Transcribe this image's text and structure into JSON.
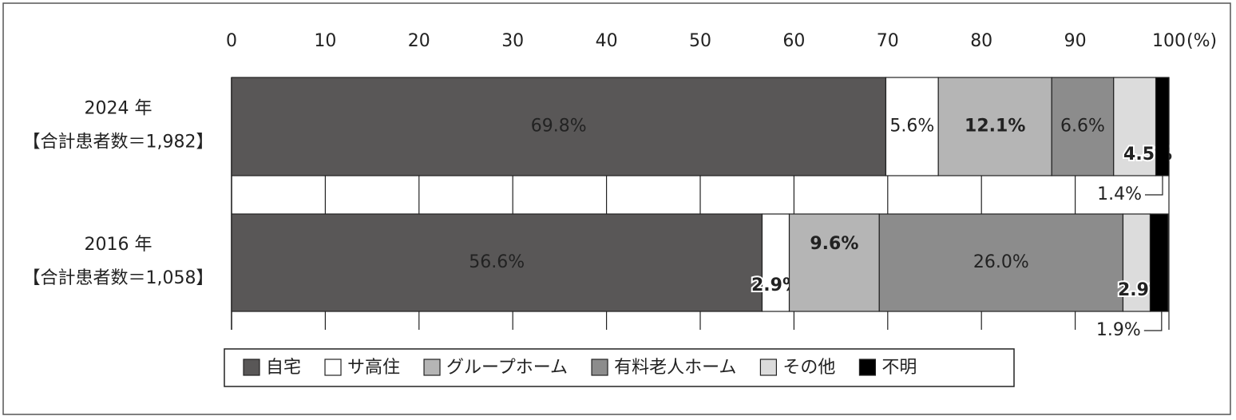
{
  "chart_data": {
    "type": "stacked-barh",
    "categories": [
      "2024 年",
      "2016 年"
    ],
    "category_notes": [
      "【合計患者数＝1,982】",
      "【合計患者数＝1,058】"
    ],
    "x_unit": "(%)",
    "xlim": [
      0,
      100
    ],
    "xticks": [
      0,
      10,
      20,
      30,
      40,
      50,
      60,
      70,
      80,
      90,
      100
    ],
    "grid": true,
    "series": [
      {
        "name": "自宅",
        "color": "#595757",
        "values": [
          69.8,
          56.6
        ],
        "value_labels": [
          "69.8%",
          "56.6%"
        ]
      },
      {
        "name": "サ高住",
        "color": "#ffffff",
        "values": [
          5.6,
          2.9
        ],
        "value_labels": [
          "5.6%",
          "2.9%"
        ]
      },
      {
        "name": "グループホーム",
        "color": "#b5b5b5",
        "values": [
          12.1,
          9.6
        ],
        "value_labels": [
          "12.1%",
          "9.6%"
        ]
      },
      {
        "name": "有料老人ホーム",
        "color": "#8c8c8c",
        "values": [
          6.6,
          26.0
        ],
        "value_labels": [
          "6.6%",
          "26.0%"
        ]
      },
      {
        "name": "その他",
        "color": "#dcdcdc",
        "values": [
          4.5,
          2.9
        ],
        "value_labels": [
          "4.5%",
          "2.9%"
        ]
      },
      {
        "name": "不明",
        "color": "#000000",
        "values": [
          1.4,
          1.9
        ],
        "value_labels": [
          "1.4%",
          "1.9%"
        ]
      }
    ],
    "legend": "bottom"
  }
}
